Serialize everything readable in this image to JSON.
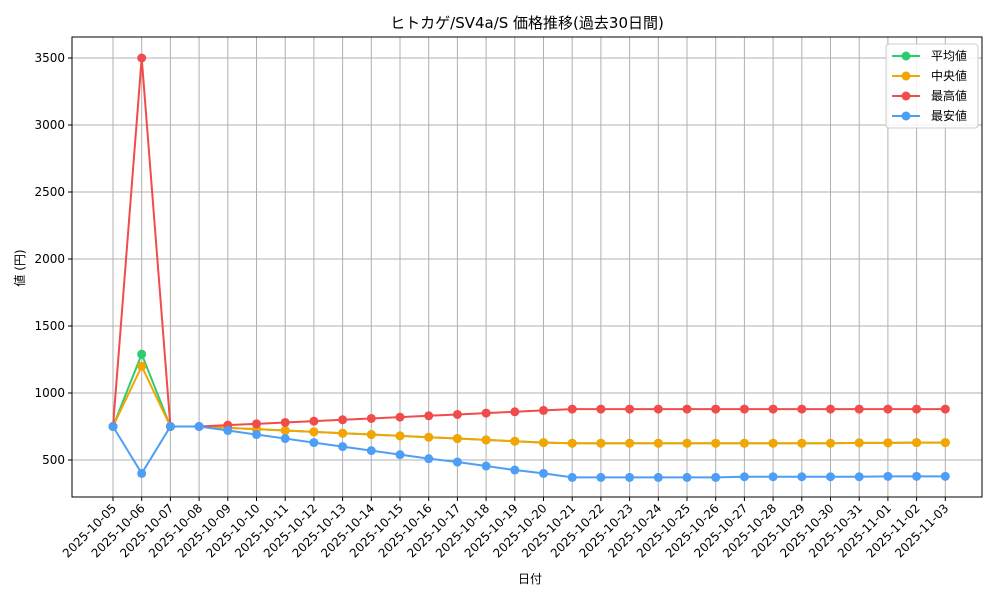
{
  "chart_data": {
    "type": "line",
    "title": "ヒトカゲ/SV4a/S 価格推移(過去30日間)",
    "xlabel": "日付",
    "ylabel": "値 (円)",
    "ylim": [
      220,
      3650
    ],
    "yticks": [
      500,
      1000,
      1500,
      2000,
      2500,
      3000,
      3500
    ],
    "grid": true,
    "legend_position": "upper right",
    "categories": [
      "2025-10-05",
      "2025-10-06",
      "2025-10-07",
      "2025-10-08",
      "2025-10-09",
      "2025-10-10",
      "2025-10-11",
      "2025-10-12",
      "2025-10-13",
      "2025-10-14",
      "2025-10-15",
      "2025-10-16",
      "2025-10-17",
      "2025-10-18",
      "2025-10-19",
      "2025-10-20",
      "2025-10-21",
      "2025-10-22",
      "2025-10-23",
      "2025-10-24",
      "2025-10-25",
      "2025-10-26",
      "2025-10-27",
      "2025-10-28",
      "2025-10-29",
      "2025-10-30",
      "2025-10-31",
      "2025-11-01",
      "2025-11-02",
      "2025-11-03"
    ],
    "series": [
      {
        "name": "平均値",
        "color": "#2ecc71",
        "values": [
          750,
          1290,
          750,
          750,
          740,
          730,
          720,
          710,
          700,
          690,
          680,
          670,
          660,
          650,
          640,
          630,
          625,
          625,
          625,
          625,
          625,
          625,
          625,
          625,
          625,
          625,
          628,
          628,
          630,
          630
        ]
      },
      {
        "name": "中央値",
        "color": "#f5a500",
        "values": [
          750,
          1200,
          750,
          750,
          740,
          730,
          720,
          710,
          700,
          690,
          680,
          670,
          660,
          650,
          640,
          630,
          625,
          625,
          625,
          625,
          625,
          625,
          625,
          625,
          625,
          625,
          628,
          628,
          630,
          630
        ]
      },
      {
        "name": "最高値",
        "color": "#f24b4b",
        "values": [
          750,
          3500,
          750,
          750,
          760,
          770,
          780,
          790,
          800,
          810,
          820,
          830,
          840,
          850,
          860,
          870,
          880,
          880,
          880,
          880,
          880,
          880,
          880,
          880,
          880,
          880,
          880,
          880,
          880,
          880
        ]
      },
      {
        "name": "最安値",
        "color": "#4d9ef7",
        "values": [
          750,
          400,
          750,
          750,
          720,
          690,
          660,
          630,
          600,
          570,
          540,
          510,
          485,
          455,
          425,
          400,
          370,
          370,
          370,
          370,
          370,
          370,
          375,
          375,
          375,
          375,
          375,
          378,
          378,
          378
        ]
      }
    ]
  }
}
